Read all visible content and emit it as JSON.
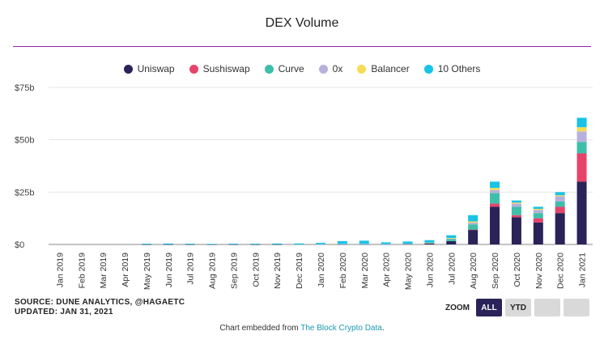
{
  "title": "DEX Volume",
  "legend": [
    {
      "name": "Uniswap",
      "color": "#2a2359"
    },
    {
      "name": "Sushiswap",
      "color": "#e8436a"
    },
    {
      "name": "Curve",
      "color": "#3dbfaa"
    },
    {
      "name": "0x",
      "color": "#b7b0dc"
    },
    {
      "name": "Balancer",
      "color": "#f6dc55"
    },
    {
      "name": "10 Others",
      "color": "#17c3e6"
    }
  ],
  "chart_data": {
    "type": "bar",
    "stacked": true,
    "title": "DEX Volume",
    "categories": [
      "Jan 2019",
      "Feb 2019",
      "Mar 2019",
      "Apr 2019",
      "May 2019",
      "Jun 2019",
      "Jul 2019",
      "Aug 2019",
      "Sep 2019",
      "Oct 2019",
      "Nov 2019",
      "Dec 2019",
      "Jan 2020",
      "Feb 2020",
      "Mar 2020",
      "Apr 2020",
      "May 2020",
      "Jun 2020",
      "Jul 2020",
      "Aug 2020",
      "Sep 2020",
      "Oct 2020",
      "Nov 2020",
      "Dec 2020",
      "Jan 2021"
    ],
    "yticks": [
      0,
      25,
      50,
      75
    ],
    "ytick_labels": [
      "$0",
      "$25b",
      "$50b",
      "$75b"
    ],
    "ylim": [
      0,
      75
    ],
    "y_unit": "billion USD",
    "grid": true,
    "legend_position": "top",
    "series": [
      {
        "name": "Uniswap",
        "color": "#2a2359",
        "values": [
          0,
          0,
          0,
          0,
          0.05,
          0.05,
          0.05,
          0.05,
          0.05,
          0.05,
          0.05,
          0.05,
          0.05,
          0.1,
          0.1,
          0.1,
          0.2,
          0.5,
          1.6,
          7.0,
          18.0,
          13.0,
          10.5,
          15.0,
          30.0
        ]
      },
      {
        "name": "Sushiswap",
        "color": "#e8436a",
        "values": [
          0,
          0,
          0,
          0,
          0,
          0,
          0,
          0,
          0,
          0,
          0,
          0,
          0,
          0,
          0,
          0,
          0,
          0,
          0,
          0.1,
          1.5,
          1.0,
          2.0,
          3.0,
          13.5
        ]
      },
      {
        "name": "Curve",
        "color": "#3dbfaa",
        "values": [
          0,
          0,
          0,
          0,
          0,
          0,
          0,
          0,
          0,
          0,
          0,
          0.02,
          0.05,
          0.1,
          0.1,
          0.05,
          0.1,
          0.2,
          1.0,
          2.5,
          5.0,
          4.0,
          2.5,
          2.5,
          5.5
        ]
      },
      {
        "name": "0x",
        "color": "#b7b0dc",
        "values": [
          0,
          0,
          0,
          0,
          0,
          0,
          0,
          0,
          0,
          0,
          0,
          0,
          0.05,
          0.1,
          0.1,
          0.05,
          0.1,
          0.1,
          0.2,
          0.8,
          1.5,
          1.5,
          1.5,
          2.5,
          5.0
        ]
      },
      {
        "name": "Balancer",
        "color": "#f6dc55",
        "values": [
          0,
          0,
          0,
          0,
          0,
          0,
          0,
          0,
          0,
          0,
          0,
          0,
          0,
          0,
          0,
          0,
          0,
          0.05,
          0.3,
          0.6,
          1.0,
          0.5,
          0.5,
          0.5,
          2.0
        ]
      },
      {
        "name": "10 Others",
        "color": "#17c3e6",
        "values": [
          0,
          0,
          0,
          0,
          0.3,
          0.4,
          0.3,
          0.2,
          0.3,
          0.3,
          0.4,
          0.4,
          0.6,
          1.3,
          1.5,
          0.8,
          1.0,
          1.2,
          1.3,
          3.0,
          3.0,
          1.0,
          1.0,
          1.5,
          4.5
        ]
      }
    ]
  },
  "footer": {
    "source": "SOURCE: DUNE ANALYTICS, @HAGAETC",
    "updated": "UPDATED: JAN 31, 2021"
  },
  "zoom": {
    "label": "ZOOM",
    "all": "ALL",
    "ytd": "YTD"
  },
  "embed": {
    "prefix": "Chart embedded from ",
    "link": "The Block Crypto Data",
    "suffix": "."
  }
}
